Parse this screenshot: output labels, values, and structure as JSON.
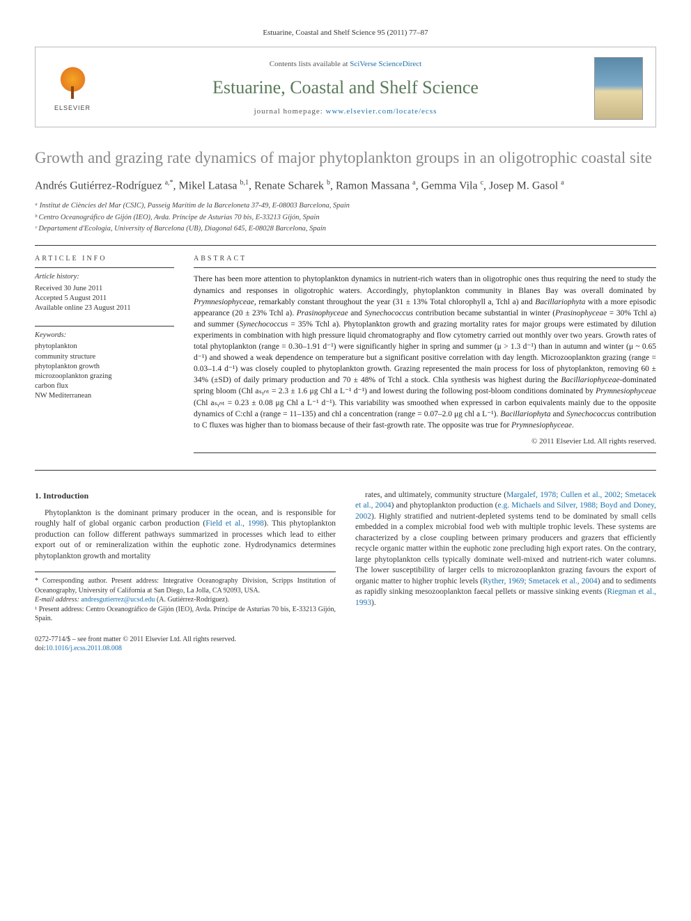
{
  "citation": "Estuarine, Coastal and Shelf Science 95 (2011) 77–87",
  "masthead": {
    "contents_prefix": "Contents lists available at ",
    "contents_link": "SciVerse ScienceDirect",
    "journal": "Estuarine, Coastal and Shelf Science",
    "homepage_prefix": "journal homepage: ",
    "homepage_url": "www.elsevier.com/locate/ecss",
    "publisher": "ELSEVIER"
  },
  "title": "Growth and grazing rate dynamics of major phytoplankton groups in an oligotrophic coastal site",
  "authors_html": "Andrés Gutiérrez-Rodríguez <sup>a,*</sup>, Mikel Latasa <sup>b,1</sup>, Renate Scharek <sup>b</sup>, Ramon Massana <sup>a</sup>, Gemma Vila <sup>c</sup>, Josep M. Gasol <sup>a</sup>",
  "affiliations": [
    "ᵃ Institut de Ciències del Mar (CSIC), Passeig Marítim de la Barceloneta 37-49, E-08003 Barcelona, Spain",
    "ᵇ Centro Oceanográfico de Gijón (IEO), Avda. Príncipe de Asturias 70 bis, E-33213 Gijón, Spain",
    "ᶜ Departament d'Ecologia, University of Barcelona (UB), Diagonal 645, E-08028 Barcelona, Spain"
  ],
  "info": {
    "label": "ARTICLE INFO",
    "history_label": "Article history:",
    "history": [
      "Received 30 June 2011",
      "Accepted 5 August 2011",
      "Available online 23 August 2011"
    ],
    "keywords_label": "Keywords:",
    "keywords": [
      "phytoplankton",
      "community structure",
      "phytoplankton growth",
      "microzooplankton grazing",
      "carbon flux",
      "NW Mediterranean"
    ]
  },
  "abstract": {
    "label": "ABSTRACT",
    "text": "There has been more attention to phytoplankton dynamics in nutrient-rich waters than in oligotrophic ones thus requiring the need to study the dynamics and responses in oligotrophic waters. Accordingly, phytoplankton community in Blanes Bay was overall dominated by Prymnesiophyceae, remarkably constant throughout the year (31 ± 13% Total chlorophyll a, Tchl a) and Bacillariophyta with a more episodic appearance (20 ± 23% Tchl a). Prasinophyceae and Synechococcus contribution became substantial in winter (Prasinophyceae = 30% Tchl a) and summer (Synechococcus = 35% Tchl a). Phytoplankton growth and grazing mortality rates for major groups were estimated by dilution experiments in combination with high pressure liquid chromatography and flow cytometry carried out monthly over two years. Growth rates of total phytoplankton (range = 0.30–1.91 d⁻¹) were significantly higher in spring and summer (μ > 1.3 d⁻¹) than in autumn and winter (μ ~ 0.65 d⁻¹) and showed a weak dependence on temperature but a significant positive correlation with day length. Microzooplankton grazing (range = 0.03–1.4 d⁻¹) was closely coupled to phytoplankton growth. Grazing represented the main process for loss of phytoplankton, removing 60 ± 34% (±SD) of daily primary production and 70 ± 48% of Tchl a stock. Chla synthesis was highest during the Bacillariophyceae-dominated spring bloom (Chl aₛᵧₙₜ = 2.3 ± 1.6 μg Chl a L⁻¹ d⁻¹) and lowest during the following post-bloom conditions dominated by Prymnesiophyceae (Chl aₛᵧₙₜ = 0.23 ± 0.08 μg Chl a L⁻¹ d⁻¹). This variability was smoothed when expressed in carbon equivalents mainly due to the opposite dynamics of C:chl a (range = 11–135) and chl a concentration (range = 0.07–2.0 μg chl a L⁻¹). Bacillariophyta and Synechococcus contribution to C fluxes was higher than to biomass because of their fast-growth rate. The opposite was true for Prymnesiophyceae.",
    "copyright": "© 2011 Elsevier Ltd. All rights reserved."
  },
  "body": {
    "heading": "1. Introduction",
    "left_para": "Phytoplankton is the dominant primary producer in the ocean, and is responsible for roughly half of global organic carbon production (Field et al., 1998). This phytoplankton production can follow different pathways summarized in processes which lead to either export out of or remineralization within the euphotic zone. Hydrodynamics determines phytoplankton growth and mortality",
    "right_para": "rates, and ultimately, community structure (Margalef, 1978; Cullen et al., 2002; Smetacek et al., 2004) and phytoplankton production (e.g. Michaels and Silver, 1988; Boyd and Doney, 2002). Highly stratified and nutrient-depleted systems tend to be dominated by small cells embedded in a complex microbial food web with multiple trophic levels. These systems are characterized by a close coupling between primary producers and grazers that efficiently recycle organic matter within the euphotic zone precluding high export rates. On the contrary, large phytoplankton cells typically dominate well-mixed and nutrient-rich water columns. The lower susceptibility of larger cells to microzooplankton grazing favours the export of organic matter to higher trophic levels (Ryther, 1969; Smetacek et al., 2004) and to sediments as rapidly sinking mesozooplankton faecal pellets or massive sinking events (Riegman et al., 1993)."
  },
  "footnotes": {
    "corresponding": "* Corresponding author. Present address: Integrative Oceanography Division, Scripps Institution of Oceanography, University of California at San Diego, La Jolla, CA 92093, USA.",
    "email_label": "E-mail address: ",
    "email": "andresgutierrez@ucsd.edu",
    "email_suffix": " (A. Gutiérrez-Rodríguez).",
    "note1": "¹ Present address: Centro Oceanográfico de Gijón (IEO), Avda. Príncipe de Asturias 70 bis, E-33213 Gijón, Spain."
  },
  "footer": {
    "issn_line": "0272-7714/$ – see front matter © 2011 Elsevier Ltd. All rights reserved.",
    "doi_label": "doi:",
    "doi": "10.1016/j.ecss.2011.08.008"
  },
  "colors": {
    "link": "#1a6faa",
    "journal_title": "#5a7a5a",
    "article_title": "#878787"
  }
}
